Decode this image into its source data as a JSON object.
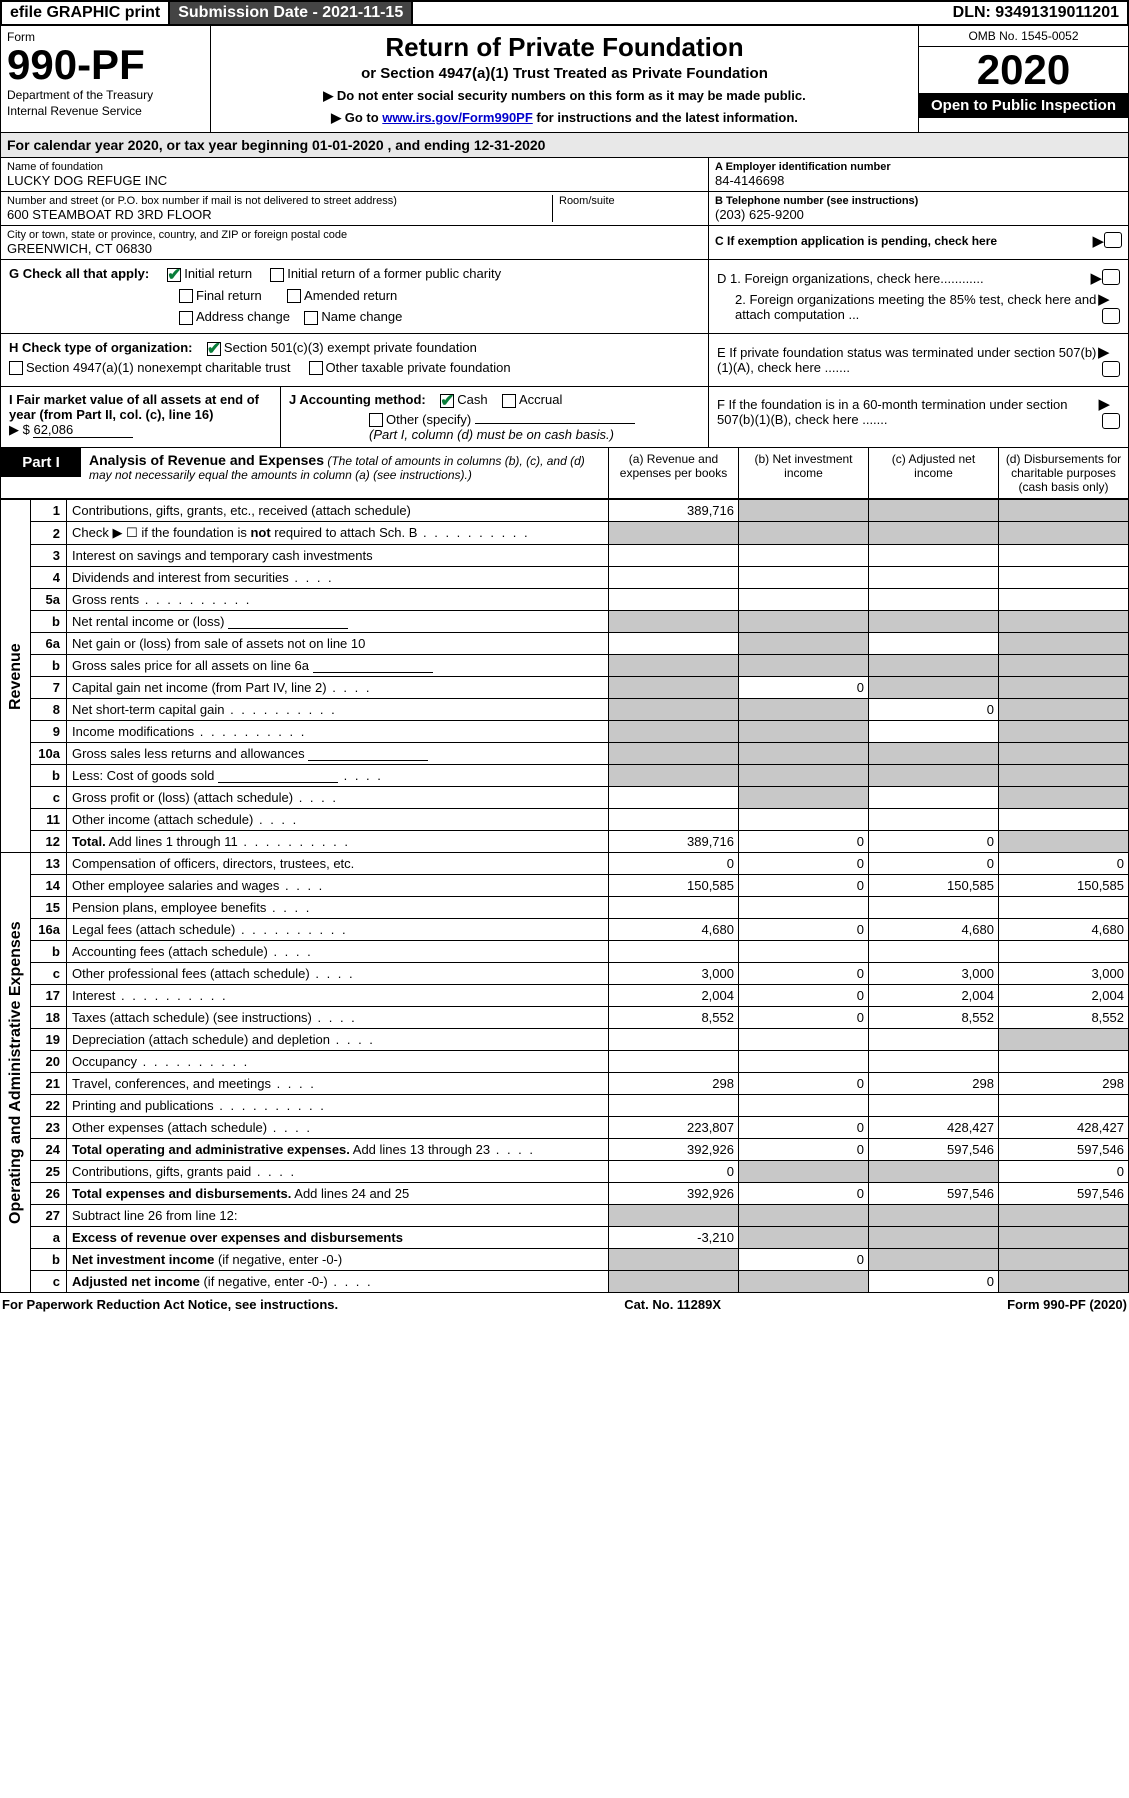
{
  "topbar": {
    "efile": "efile GRAPHIC print",
    "subdate_label": "Submission Date - 2021-11-15",
    "dln": "DLN: 93491319011201"
  },
  "header": {
    "form_word": "Form",
    "form_no": "990-PF",
    "dept": "Department of the Treasury",
    "irs": "Internal Revenue Service",
    "title": "Return of Private Foundation",
    "subtitle": "or Section 4947(a)(1) Trust Treated as Private Foundation",
    "note1": "▶ Do not enter social security numbers on this form as it may be made public.",
    "note2_pre": "▶ Go to ",
    "note2_link": "www.irs.gov/Form990PF",
    "note2_post": " for instructions and the latest information.",
    "omb": "OMB No. 1545-0052",
    "year": "2020",
    "open": "Open to Public Inspection"
  },
  "period": "For calendar year 2020, or tax year beginning 01-01-2020            , and ending 12-31-2020",
  "info": {
    "name_label": "Name of foundation",
    "name": "LUCKY DOG REFUGE INC",
    "addr_label": "Number and street (or P.O. box number if mail is not delivered to street address)",
    "addr": "600 STEAMBOAT RD 3RD FLOOR",
    "suite_label": "Room/suite",
    "city_label": "City or town, state or province, country, and ZIP or foreign postal code",
    "city": "GREENWICH, CT  06830",
    "a_label": "A Employer identification number",
    "a_val": "84-4146698",
    "b_label": "B Telephone number (see instructions)",
    "b_val": "(203) 625-9200",
    "c_label": "C If exemption application is pending, check here"
  },
  "g": {
    "label": "G Check all that apply:",
    "opts": [
      "Initial return",
      "Initial return of a former public charity",
      "Final return",
      "Amended return",
      "Address change",
      "Name change"
    ]
  },
  "d": {
    "d1": "D 1. Foreign organizations, check here............",
    "d2": "2. Foreign organizations meeting the 85% test, check here and attach computation ...",
    "e": "E  If private foundation status was terminated under section 507(b)(1)(A), check here .......",
    "f": "F  If the foundation is in a 60-month termination under section 507(b)(1)(B), check here ......."
  },
  "h": {
    "label": "H Check type of organization:",
    "o1": "Section 501(c)(3) exempt private foundation",
    "o2": "Section 4947(a)(1) nonexempt charitable trust",
    "o3": "Other taxable private foundation"
  },
  "i": {
    "label": "I Fair market value of all assets at end of year (from Part II, col. (c), line 16)",
    "val": "62,086",
    "arrow": "▶ $"
  },
  "j": {
    "label": "J Accounting method:",
    "cash": "Cash",
    "accrual": "Accrual",
    "other": "Other (specify)",
    "note": "(Part I, column (d) must be on cash basis.)"
  },
  "part1": {
    "label": "Part I",
    "title": "Analysis of Revenue and Expenses",
    "subtitle": "(The total of amounts in columns (b), (c), and (d) may not necessarily equal the amounts in column (a) (see instructions).)",
    "cols": {
      "a": "(a) Revenue and expenses per books",
      "b": "(b) Net investment income",
      "c": "(c) Adjusted net income",
      "d": "(d) Disbursements for charitable purposes (cash basis only)"
    }
  },
  "sidelabels": {
    "rev": "Revenue",
    "exp": "Operating and Administrative Expenses"
  },
  "rows": [
    {
      "ln": "1",
      "desc": "Contributions, gifts, grants, etc., received (attach schedule)",
      "a": "389,716",
      "shade": [
        "b",
        "c",
        "d"
      ]
    },
    {
      "ln": "2",
      "desc": "Check ▶ ☐ if the foundation is <b>not</b> required to attach Sch. B",
      "dots": true,
      "shade": [
        "a",
        "b",
        "c",
        "d"
      ]
    },
    {
      "ln": "3",
      "desc": "Interest on savings and temporary cash investments"
    },
    {
      "ln": "4",
      "desc": "Dividends and interest from securities",
      "dots_s": true
    },
    {
      "ln": "5a",
      "desc": "Gross rents",
      "dots": true
    },
    {
      "ln": "b",
      "desc": "Net rental income or (loss)",
      "inlinebox": true,
      "shade": [
        "a",
        "b",
        "c",
        "d"
      ]
    },
    {
      "ln": "6a",
      "desc": "Net gain or (loss) from sale of assets not on line 10",
      "shade": [
        "b",
        "d"
      ]
    },
    {
      "ln": "b",
      "desc": "Gross sales price for all assets on line 6a",
      "inlinebox": true,
      "shade": [
        "a",
        "b",
        "c",
        "d"
      ]
    },
    {
      "ln": "7",
      "desc": "Capital gain net income (from Part IV, line 2)",
      "dots_s": true,
      "b": "0",
      "shade": [
        "a",
        "c",
        "d"
      ]
    },
    {
      "ln": "8",
      "desc": "Net short-term capital gain",
      "dots": true,
      "c": "0",
      "shade": [
        "a",
        "b",
        "d"
      ]
    },
    {
      "ln": "9",
      "desc": "Income modifications",
      "dots": true,
      "shade": [
        "a",
        "b",
        "d"
      ]
    },
    {
      "ln": "10a",
      "desc": "Gross sales less returns and allowances",
      "inlinebox": true,
      "shade": [
        "a",
        "b",
        "c",
        "d"
      ]
    },
    {
      "ln": "b",
      "desc": "Less: Cost of goods sold",
      "dots_s": true,
      "inlinebox": true,
      "shade": [
        "a",
        "b",
        "c",
        "d"
      ]
    },
    {
      "ln": "c",
      "desc": "Gross profit or (loss) (attach schedule)",
      "dots_s": true,
      "shade": [
        "b",
        "d"
      ]
    },
    {
      "ln": "11",
      "desc": "Other income (attach schedule)",
      "dots_s": true
    },
    {
      "ln": "12",
      "desc": "<b>Total.</b> Add lines 1 through 11",
      "dots": true,
      "a": "389,716",
      "b": "0",
      "c": "0",
      "shade": [
        "d"
      ],
      "bold": true
    },
    {
      "ln": "13",
      "desc": "Compensation of officers, directors, trustees, etc.",
      "a": "0",
      "b": "0",
      "c": "0",
      "d": "0"
    },
    {
      "ln": "14",
      "desc": "Other employee salaries and wages",
      "dots_s": true,
      "a": "150,585",
      "b": "0",
      "c": "150,585",
      "d": "150,585"
    },
    {
      "ln": "15",
      "desc": "Pension plans, employee benefits",
      "dots_s": true
    },
    {
      "ln": "16a",
      "desc": "Legal fees (attach schedule)",
      "dots": true,
      "a": "4,680",
      "b": "0",
      "c": "4,680",
      "d": "4,680"
    },
    {
      "ln": "b",
      "desc": "Accounting fees (attach schedule)",
      "dots_s": true
    },
    {
      "ln": "c",
      "desc": "Other professional fees (attach schedule)",
      "dots_s": true,
      "a": "3,000",
      "b": "0",
      "c": "3,000",
      "d": "3,000"
    },
    {
      "ln": "17",
      "desc": "Interest",
      "dots": true,
      "a": "2,004",
      "b": "0",
      "c": "2,004",
      "d": "2,004"
    },
    {
      "ln": "18",
      "desc": "Taxes (attach schedule) (see instructions)",
      "dots_s": true,
      "a": "8,552",
      "b": "0",
      "c": "8,552",
      "d": "8,552"
    },
    {
      "ln": "19",
      "desc": "Depreciation (attach schedule) and depletion",
      "dots_s": true,
      "shade": [
        "d"
      ]
    },
    {
      "ln": "20",
      "desc": "Occupancy",
      "dots": true
    },
    {
      "ln": "21",
      "desc": "Travel, conferences, and meetings",
      "dots_s": true,
      "a": "298",
      "b": "0",
      "c": "298",
      "d": "298"
    },
    {
      "ln": "22",
      "desc": "Printing and publications",
      "dots": true
    },
    {
      "ln": "23",
      "desc": "Other expenses (attach schedule)",
      "dots_s": true,
      "a": "223,807",
      "b": "0",
      "c": "428,427",
      "d": "428,427"
    },
    {
      "ln": "24",
      "desc": "<b>Total operating and administrative expenses.</b> Add lines 13 through 23",
      "dots_s": true,
      "a": "392,926",
      "b": "0",
      "c": "597,546",
      "d": "597,546",
      "bold": true
    },
    {
      "ln": "25",
      "desc": "Contributions, gifts, grants paid",
      "dots_s": true,
      "a": "0",
      "d": "0",
      "shade": [
        "b",
        "c"
      ]
    },
    {
      "ln": "26",
      "desc": "<b>Total expenses and disbursements.</b> Add lines 24 and 25",
      "a": "392,926",
      "b": "0",
      "c": "597,546",
      "d": "597,546",
      "bold": true
    },
    {
      "ln": "27",
      "desc": "Subtract line 26 from line 12:",
      "shade": [
        "a",
        "b",
        "c",
        "d"
      ]
    },
    {
      "ln": "a",
      "desc": "<b>Excess of revenue over expenses and disbursements</b>",
      "a": "-3,210",
      "shade": [
        "b",
        "c",
        "d"
      ],
      "bold": true
    },
    {
      "ln": "b",
      "desc": "<b>Net investment income</b> (if negative, enter -0-)",
      "b": "0",
      "shade": [
        "a",
        "c",
        "d"
      ],
      "bold": true
    },
    {
      "ln": "c",
      "desc": "<b>Adjusted net income</b> (if negative, enter -0-)",
      "dots_s": true,
      "c": "0",
      "shade": [
        "a",
        "b",
        "d"
      ],
      "bold": true
    }
  ],
  "footer": {
    "left": "For Paperwork Reduction Act Notice, see instructions.",
    "mid": "Cat. No. 11289X",
    "right": "Form 990-PF (2020)"
  }
}
